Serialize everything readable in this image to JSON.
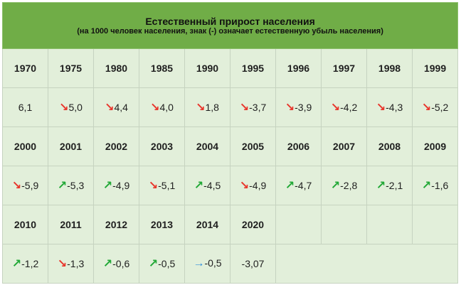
{
  "title": "Естественный прирост населения",
  "subtitle": "(на 1000 человек населения, знак (-) означает естественную убыль населения)",
  "colors": {
    "header_bg": "#70ad47",
    "cell_bg": "#e2efda",
    "down": "#e8352b",
    "up": "#21a836",
    "flat": "#2f8fdc"
  },
  "rows": [
    {
      "years": [
        "1970",
        "1975",
        "1980",
        "1985",
        "1990",
        "1995",
        "1996",
        "1997",
        "1998",
        "1999"
      ],
      "values": [
        {
          "trend": "none",
          "value": "6,1"
        },
        {
          "trend": "down",
          "value": "5,0"
        },
        {
          "trend": "down",
          "value": "4,4"
        },
        {
          "trend": "down",
          "value": "4,0"
        },
        {
          "trend": "down",
          "value": "1,8"
        },
        {
          "trend": "down",
          "value": "-3,7"
        },
        {
          "trend": "down",
          "value": "-3,9"
        },
        {
          "trend": "down",
          "value": "-4,2"
        },
        {
          "trend": "down",
          "value": "-4,3"
        },
        {
          "trend": "down",
          "value": "-5,2"
        }
      ]
    },
    {
      "years": [
        "2000",
        "2001",
        "2002",
        "2003",
        "2004",
        "2005",
        "2006",
        "2007",
        "2008",
        "2009"
      ],
      "values": [
        {
          "trend": "down",
          "value": "-5,9"
        },
        {
          "trend": "up",
          "value": "-5,3"
        },
        {
          "trend": "up",
          "value": "-4,9"
        },
        {
          "trend": "down",
          "value": "-5,1"
        },
        {
          "trend": "up",
          "value": "-4,5"
        },
        {
          "trend": "down",
          "value": "-4,9"
        },
        {
          "trend": "up",
          "value": "-4,7"
        },
        {
          "trend": "up",
          "value": "-2,8"
        },
        {
          "trend": "up",
          "value": "-2,1"
        },
        {
          "trend": "up",
          "value": "-1,6"
        }
      ]
    },
    {
      "years": [
        "2010",
        "2011",
        "2012",
        "2013",
        "2014",
        "2020"
      ],
      "values": [
        {
          "trend": "up",
          "value": "-1,2"
        },
        {
          "trend": "down",
          "value": "-1,3"
        },
        {
          "trend": "up",
          "value": "-0,6"
        },
        {
          "trend": "up",
          "value": "-0,5"
        },
        {
          "trend": "flat",
          "value": "-0,5"
        },
        {
          "trend": "none",
          "value": "-3,07"
        }
      ]
    }
  ]
}
